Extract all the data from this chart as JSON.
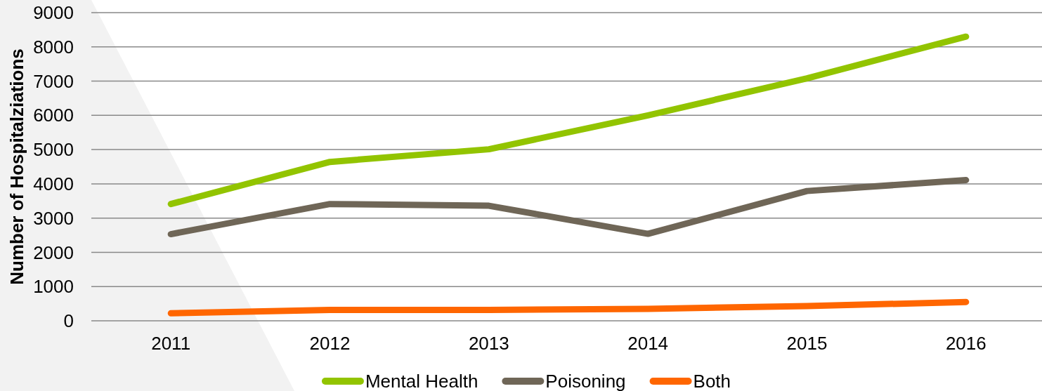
{
  "chart_data": {
    "type": "line",
    "ylabel": "Number of Hospitalziations",
    "categories": [
      "2011",
      "2012",
      "2013",
      "2014",
      "2015",
      "2016"
    ],
    "series": [
      {
        "name": "Mental Health",
        "color": "#92c400",
        "values": [
          3410,
          4640,
          5010,
          6000,
          7080,
          8300
        ]
      },
      {
        "name": "Poisoning",
        "color": "#6f6657",
        "values": [
          2530,
          3410,
          3360,
          2540,
          3790,
          4110
        ]
      },
      {
        "name": "Both",
        "color": "#ff6600",
        "values": [
          220,
          320,
          320,
          350,
          430,
          550
        ]
      }
    ],
    "ylim": [
      0,
      9000
    ],
    "yticks": [
      0,
      1000,
      2000,
      3000,
      4000,
      5000,
      6000,
      7000,
      8000,
      9000
    ],
    "grid": "y",
    "legend": "bottom"
  }
}
